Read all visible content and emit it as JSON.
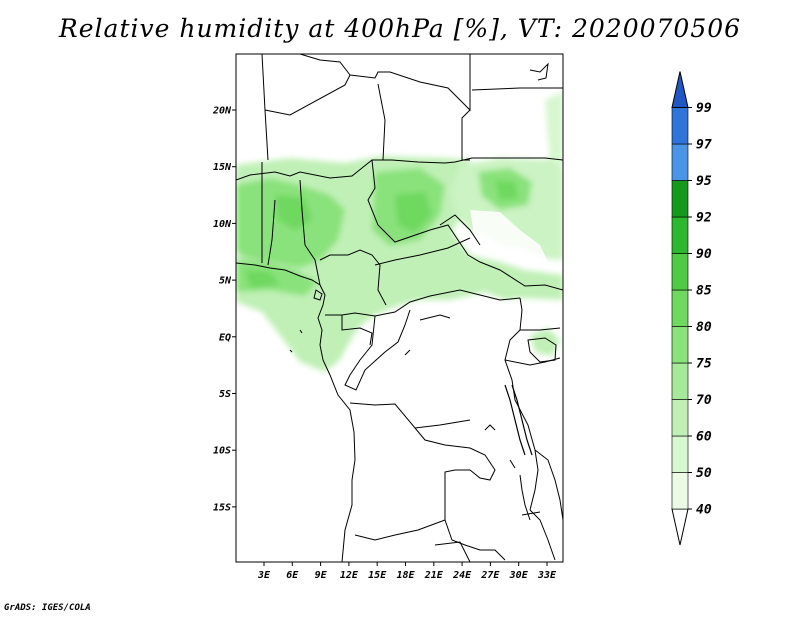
{
  "title": "Relative humidity at 400hPa [%], VT: 2020070506",
  "credit": "GrADS: IGES/COLA",
  "map": {
    "lat_labels": [
      "20N",
      "15N",
      "10N",
      "5N",
      "EQ",
      "5S",
      "10S",
      "15S"
    ],
    "lon_labels": [
      "3E",
      "6E",
      "9E",
      "12E",
      "15E",
      "18E",
      "21E",
      "24E",
      "27E",
      "30E",
      "33E"
    ]
  },
  "colorbar": {
    "levels": [
      "40",
      "50",
      "60",
      "70",
      "75",
      "80",
      "85",
      "90",
      "92",
      "95",
      "97",
      "99"
    ],
    "colors": [
      "#ffffff",
      "#ebfbe6",
      "#d6f7cf",
      "#c0f0b6",
      "#a6ea99",
      "#8ae27c",
      "#6ed85f",
      "#4fca45",
      "#2eb82f",
      "#159a1b",
      "#4a95e6",
      "#2f74d9",
      "#1f57c4"
    ]
  }
}
